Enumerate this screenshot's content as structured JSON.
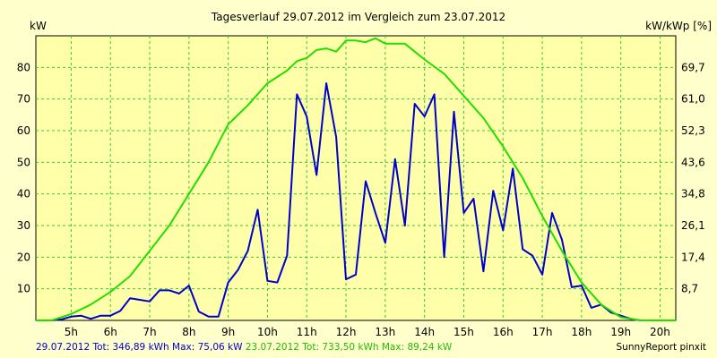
{
  "chart_data": {
    "type": "line",
    "title": "Tagesverlauf 29.07.2012 im Vergleich zum 23.07.2012",
    "ylabel_left": "kW",
    "ylabel_right": "kW/kWp [%]",
    "x_ticks": [
      "5h",
      "6h",
      "7h",
      "8h",
      "9h",
      "10h",
      "11h",
      "12h",
      "13h",
      "14h",
      "15h",
      "16h",
      "17h",
      "18h",
      "19h",
      "20h"
    ],
    "y_ticks_left": [
      "10",
      "20",
      "30",
      "40",
      "50",
      "60",
      "70",
      "80"
    ],
    "y_ticks_right": [
      "8,7",
      "17,4",
      "26,1",
      "34,8",
      "43,6",
      "52,3",
      "61,0",
      "69,7"
    ],
    "xlim": [
      4.1,
      20.4
    ],
    "ylim": [
      0,
      90
    ],
    "grid": true,
    "series": [
      {
        "name": "29.07.2012",
        "color": "#0000cc",
        "x": [
          4.1,
          4.5,
          4.75,
          5.0,
          5.25,
          5.5,
          5.75,
          6.0,
          6.25,
          6.5,
          6.75,
          7.0,
          7.25,
          7.5,
          7.75,
          8.0,
          8.25,
          8.5,
          8.75,
          9.0,
          9.25,
          9.5,
          9.75,
          10.0,
          10.25,
          10.5,
          10.75,
          11.0,
          11.25,
          11.5,
          11.75,
          12.0,
          12.25,
          12.5,
          12.75,
          13.0,
          13.25,
          13.5,
          13.75,
          14.0,
          14.25,
          14.5,
          14.75,
          15.0,
          15.25,
          15.5,
          15.75,
          16.0,
          16.25,
          16.5,
          16.75,
          17.0,
          17.25,
          17.5,
          17.75,
          18.0,
          18.25,
          18.5,
          18.75,
          19.0,
          19.25,
          19.5,
          19.75,
          20.0,
          20.4
        ],
        "y": [
          0,
          0,
          0.3,
          1.2,
          1.5,
          0.5,
          1.5,
          1.5,
          3,
          7,
          6.5,
          6,
          9.5,
          9.5,
          8.5,
          11,
          2.8,
          1.2,
          1.2,
          12,
          16,
          22,
          35,
          12.5,
          12,
          20.5,
          71.5,
          64.5,
          46,
          75,
          58,
          13,
          14.5,
          44,
          34,
          24.5,
          51,
          30,
          68.5,
          64.5,
          71.5,
          20,
          66,
          34,
          38.5,
          15.5,
          41,
          28.5,
          48,
          22.5,
          20.5,
          14.5,
          34,
          25.5,
          10.5,
          11,
          4,
          5,
          2.5,
          1.5,
          0.5,
          0,
          0,
          0,
          0
        ]
      },
      {
        "name": "23.07.2012",
        "color": "#22dd00",
        "x": [
          4.1,
          4.5,
          5.0,
          5.5,
          6.0,
          6.5,
          7.0,
          7.5,
          8.0,
          8.5,
          9.0,
          9.5,
          10.0,
          10.5,
          10.75,
          11.0,
          11.25,
          11.5,
          11.75,
          12.0,
          12.25,
          12.5,
          12.75,
          13.0,
          13.25,
          13.5,
          13.75,
          14.0,
          14.5,
          15.0,
          15.5,
          16.0,
          16.5,
          17.0,
          17.5,
          18.0,
          18.5,
          19.0,
          19.5,
          19.75,
          20.0,
          20.4
        ],
        "y": [
          0,
          0,
          2,
          5,
          9,
          14,
          22,
          30,
          40,
          50,
          62,
          68,
          75,
          79,
          82,
          83,
          85.5,
          86,
          85,
          88.5,
          88.5,
          88,
          89.2,
          87.5,
          87.5,
          87.5,
          85,
          82.5,
          78,
          71,
          64,
          55,
          45,
          33,
          22,
          12,
          5,
          1,
          0,
          0,
          0,
          0
        ]
      }
    ]
  },
  "footer": {
    "legend_a": "29.07.2012 Tot: 346,89 kWh Max: 75,06 kW",
    "legend_b": "23.07.2012 Tot: 733,50 kWh Max: 89,24 kW",
    "credit": "SunnyReport pinxit"
  }
}
